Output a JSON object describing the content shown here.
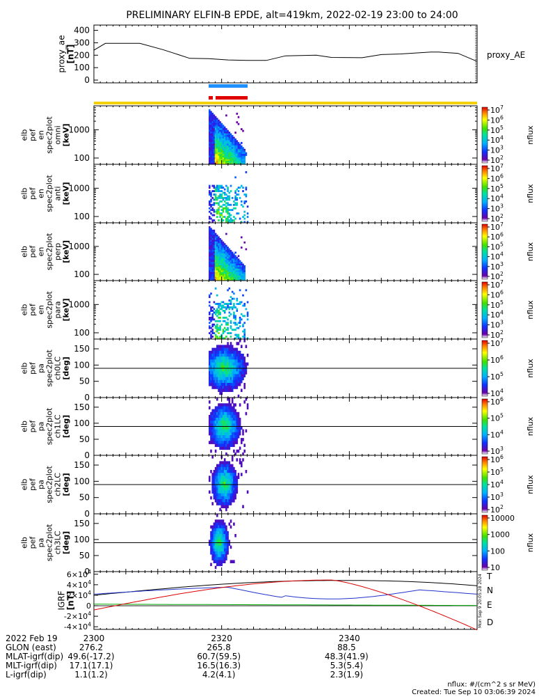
{
  "title": "PRELIMINARY ELFIN-B EPDE, alt=419km, 2022-02-19 23:00 to 24:00",
  "colors": {
    "yellow_bar": "#f5d000",
    "blue_bar": "#1e90ff",
    "red_bar": "#e00000",
    "trace_T": "#000000",
    "trace_N": "#2233cc",
    "trace_E": "#00aa00",
    "trace_D": "#dd0000"
  },
  "chart_data": [
    {
      "type": "line",
      "name": "proxy_ae",
      "ylabel_lines": [
        "proxy_ae",
        "[nT]"
      ],
      "right_label": "proxy_AE",
      "ylim": [
        0,
        420
      ],
      "yticks": [
        0,
        100,
        200,
        300,
        400
      ],
      "x": [
        0,
        3,
        6,
        12,
        18,
        25,
        30,
        35,
        40,
        45,
        50,
        55,
        58,
        62,
        70,
        75,
        80,
        88,
        90,
        95,
        100
      ],
      "y": [
        240,
        295,
        295,
        295,
        245,
        175,
        172,
        162,
        158,
        158,
        195,
        198,
        200,
        182,
        180,
        205,
        210,
        225,
        225,
        215,
        150
      ]
    },
    {
      "type": "heatmap",
      "name": "elb_pef_en_spec2plot_omni",
      "ylabel_lines": [
        "elb",
        "pef",
        "en",
        "spec2plot",
        "omni",
        "[keV]"
      ],
      "yscale": "log",
      "ylim": [
        60,
        7000
      ],
      "yticks": [
        "100",
        "1000"
      ],
      "colorbar": {
        "label": "nflux",
        "ticks": [
          "10^2",
          "10^3",
          "10^4",
          "10^5",
          "10^6",
          "10^7"
        ]
      }
    },
    {
      "type": "heatmap",
      "name": "elb_pef_en_spec2plot_anti",
      "ylabel_lines": [
        "elb",
        "pef",
        "en",
        "spec2plot",
        "anti",
        "[keV]"
      ],
      "yscale": "log",
      "ylim": [
        60,
        7000
      ],
      "yticks": [
        "100",
        "1000"
      ],
      "colorbar": {
        "label": "nflux",
        "ticks": [
          "10^2",
          "10^3",
          "10^4",
          "10^5",
          "10^6",
          "10^7"
        ]
      }
    },
    {
      "type": "heatmap",
      "name": "elb_pef_en_spec2plot_perp",
      "ylabel_lines": [
        "elb",
        "pef",
        "en",
        "spec2plot",
        "perp",
        "[keV]"
      ],
      "yscale": "log",
      "ylim": [
        60,
        7000
      ],
      "yticks": [
        "100",
        "1000"
      ],
      "colorbar": {
        "label": "nflux",
        "ticks": [
          "10^2",
          "10^3",
          "10^4",
          "10^5",
          "10^6",
          "10^7"
        ]
      }
    },
    {
      "type": "heatmap",
      "name": "elb_pef_en_spec2plot_para",
      "ylabel_lines": [
        "elb",
        "pef",
        "en",
        "spec2plot",
        "para",
        "[keV]"
      ],
      "yscale": "log",
      "ylim": [
        60,
        7000
      ],
      "yticks": [
        "100",
        "1000"
      ],
      "colorbar": {
        "label": "nflux",
        "ticks": [
          "10^2",
          "10^3",
          "10^4",
          "10^5",
          "10^6",
          "10^7"
        ]
      }
    },
    {
      "type": "heatmap",
      "name": "elb_pef_pa_spec2plot_ch0LC",
      "ylabel_lines": [
        "elb",
        "pef",
        "pa",
        "spec2plot",
        "ch0LC",
        "[deg]"
      ],
      "ylim": [
        0,
        180
      ],
      "yticks": [
        "0",
        "50",
        "100",
        "150"
      ],
      "colorbar": {
        "label": "nflux",
        "ticks": [
          "10^4",
          "10^5",
          "10^6",
          "10^7"
        ]
      }
    },
    {
      "type": "heatmap",
      "name": "elb_pef_pa_spec2plot_ch1LC",
      "ylabel_lines": [
        "elb",
        "pef",
        "pa",
        "spec2plot",
        "ch1LC",
        "[deg]"
      ],
      "ylim": [
        0,
        180
      ],
      "yticks": [
        "0",
        "50",
        "100",
        "150"
      ],
      "colorbar": {
        "label": "nflux",
        "ticks": [
          "10^3",
          "10^4",
          "10^5",
          "10^6"
        ]
      }
    },
    {
      "type": "heatmap",
      "name": "elb_pef_pa_spec2plot_ch2LC",
      "ylabel_lines": [
        "elb",
        "pef",
        "pa",
        "spec2plot",
        "ch2LC",
        "[deg]"
      ],
      "ylim": [
        0,
        180
      ],
      "yticks": [
        "0",
        "50",
        "100",
        "150"
      ],
      "colorbar": {
        "label": "nflux",
        "ticks": [
          "10^2",
          "10^3",
          "10^4",
          "10^5",
          "10^6"
        ]
      }
    },
    {
      "type": "heatmap",
      "name": "elb_pef_pa_spec2plot_ch3LC",
      "ylabel_lines": [
        "elb",
        "pef",
        "pa",
        "spec2plot",
        "ch3LC",
        "[deg]"
      ],
      "ylim": [
        0,
        180
      ],
      "yticks": [
        "0",
        "50",
        "100",
        "150"
      ],
      "colorbar": {
        "label": "nflux",
        "ticks": [
          "10",
          "100",
          "1000",
          "10000"
        ]
      }
    },
    {
      "type": "line",
      "name": "IGRF",
      "ylabel_lines": [
        "IGRF",
        "[nT]"
      ],
      "ylim": [
        -45000,
        65000
      ],
      "yticks": [
        "-4×10^4",
        "-2×10^4",
        "0",
        "2×10^4",
        "4×10^4",
        "6×10^4"
      ],
      "legend": [
        "T",
        "N",
        "E",
        "D"
      ],
      "stamp": "Mon Sep 9 20:05:28 2024"
    }
  ],
  "footer": {
    "labels": [
      "2022 Feb 19",
      "GLON (east)",
      "MLAT-igrf(dip)",
      "MLT-igrf(dip)",
      "L-igrf(dip)"
    ],
    "columns": [
      {
        "tick": "2300",
        "values": [
          "276.2",
          "49.6(-17.2)",
          "17.1(17.1)",
          "1.1(1.2)"
        ]
      },
      {
        "tick": "2320",
        "values": [
          "265.8",
          "60.7(59.5)",
          "16.5(16.3)",
          "4.2(4.1)"
        ]
      },
      {
        "tick": "2340",
        "values": [
          "88.5",
          "48.3(41.9)",
          "5.3(5.4)",
          "2.3(1.9)"
        ]
      }
    ],
    "units_note": "nflux: #/(cm^2 s sr MeV)",
    "created": "Created: Tue Sep 10 03:06:39 2024"
  }
}
